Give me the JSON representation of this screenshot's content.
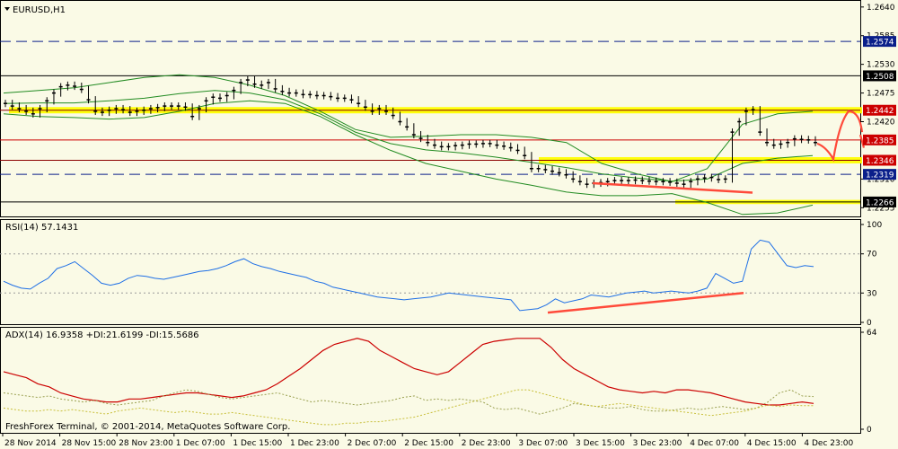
{
  "terminal": {
    "symbol_label": "EURUSD,H1",
    "copyright": "FreshForex Terminal, © 2001-2014, MetaQuotes Software Corp.",
    "colors": {
      "background": "#fafae6",
      "candle": "#000000",
      "bollinger": "#228b22",
      "resistance": "#8b0000",
      "support_zone": "#ffff00",
      "trend_annotation": "#ff4a3a",
      "rsi": "#1e6fe6",
      "adx": "#cc0000",
      "plus_di": "#9aa050",
      "minus_di": "#c8bf3a",
      "price_label_bg": "#0a1f8a",
      "price_label_red": "#cc0000"
    }
  },
  "chart_data": [
    {
      "type": "candlestick",
      "name": "price",
      "symbol": "EURUSD",
      "timeframe": "H1",
      "ylim": [
        1.224,
        1.265
      ],
      "y_ticks": [
        "1.2640",
        "1.2585",
        "1.2530",
        "1.2475",
        "1.2420",
        "1.2310",
        "1.2255"
      ],
      "x_labels": [
        "28 Nov 2014",
        "28 Nov 15:00",
        "28 Nov 23:00",
        "1 Dec 07:00",
        "1 Dec 15:00",
        "1 Dec 23:00",
        "2 Dec 07:00",
        "2 Dec 15:00",
        "2 Dec 23:00",
        "3 Dec 07:00",
        "3 Dec 15:00",
        "3 Dec 23:00",
        "4 Dec 07:00",
        "4 Dec 15:00",
        "4 Dec 23:00"
      ],
      "closes": [
        1.2455,
        1.245,
        1.2445,
        1.244,
        1.2435,
        1.2445,
        1.246,
        1.2475,
        1.2487,
        1.249,
        1.2488,
        1.2482,
        1.2462,
        1.244,
        1.2438,
        1.2442,
        1.2445,
        1.2443,
        1.2438,
        1.244,
        1.2442,
        1.2445,
        1.2447,
        1.245,
        1.245,
        1.245,
        1.2448,
        1.243,
        1.2445,
        1.246,
        1.2467,
        1.2465,
        1.247,
        1.248,
        1.2495,
        1.25,
        1.2492,
        1.249,
        1.2495,
        1.2483,
        1.2478,
        1.2475,
        1.2475,
        1.2472,
        1.2472,
        1.247,
        1.247,
        1.2468,
        1.2465,
        1.2465,
        1.2462,
        1.2455,
        1.2448,
        1.244,
        1.2445,
        1.244,
        1.2432,
        1.242,
        1.241,
        1.2395,
        1.2388,
        1.238,
        1.2375,
        1.2372,
        1.2372,
        1.2374,
        1.2375,
        1.2377,
        1.2377,
        1.2378,
        1.2378,
        1.2375,
        1.2373,
        1.237,
        1.2365,
        1.2355,
        1.233,
        1.233,
        1.2328,
        1.2325,
        1.2322,
        1.2318,
        1.231,
        1.2305,
        1.23,
        1.2302,
        1.2303,
        1.2305,
        1.2307,
        1.2307,
        1.2307,
        1.2308,
        1.2307,
        1.2306,
        1.2305,
        1.2305,
        1.2304,
        1.2302,
        1.23,
        1.2305,
        1.231,
        1.2312,
        1.2313,
        1.2309,
        1.231,
        1.24,
        1.242,
        1.244,
        1.2443,
        1.24,
        1.238,
        1.2375,
        1.2377,
        1.238,
        1.2387,
        1.2386,
        1.2385,
        1.238
      ],
      "bollinger": {
        "upper": [
          1.2475,
          1.248,
          1.2485,
          1.2495,
          1.2505,
          1.251,
          1.2505,
          1.249,
          1.247,
          1.244,
          1.2405,
          1.239,
          1.2392,
          1.2395,
          1.2395,
          1.239,
          1.238,
          1.234,
          1.232,
          1.2305,
          1.233,
          1.2415,
          1.2435,
          1.244
        ],
        "lower": [
          1.2435,
          1.243,
          1.2428,
          1.2425,
          1.2428,
          1.244,
          1.2455,
          1.246,
          1.2455,
          1.243,
          1.2395,
          1.2365,
          1.234,
          1.2325,
          1.231,
          1.2298,
          1.2285,
          1.2278,
          1.2278,
          1.2282,
          1.2265,
          1.2242,
          1.2245,
          1.226
        ],
        "middle": [
          1.2455,
          1.2456,
          1.2456,
          1.246,
          1.2465,
          1.2474,
          1.248,
          1.2475,
          1.2462,
          1.2435,
          1.24,
          1.2378,
          1.2366,
          1.236,
          1.2352,
          1.2342,
          1.2332,
          1.232,
          1.2312,
          1.2306,
          1.231,
          1.234,
          1.235,
          1.2355
        ]
      },
      "levels": [
        {
          "label": "1.2574",
          "value": 1.2574,
          "style": "dashed",
          "color": "#0a1f8a"
        },
        {
          "label": "1.2508",
          "value": 1.2508,
          "style": "solid",
          "color": "#000000"
        },
        {
          "label": "1.2442",
          "value": 1.2442,
          "style": "solid",
          "color": "#8b0000"
        },
        {
          "label": "1.2385",
          "value": 1.2385,
          "style": "solid",
          "color": "#cc0000"
        },
        {
          "label": "1.2346",
          "value": 1.2346,
          "style": "solid",
          "color": "#8b0000"
        },
        {
          "label": "1.2319",
          "value": 1.2319,
          "style": "dashed",
          "color": "#0a1f8a"
        },
        {
          "label": "1.2266",
          "value": 1.2266,
          "style": "solid",
          "color": "#000000"
        }
      ]
    },
    {
      "type": "line",
      "name": "rsi",
      "title": "RSI(14) 57.1431",
      "ylim": [
        0,
        100
      ],
      "y_ticks": [
        "100",
        "70",
        "30",
        "0"
      ],
      "levels": [
        70,
        30
      ],
      "values": [
        42,
        38,
        35,
        34,
        40,
        45,
        55,
        58,
        62,
        55,
        48,
        40,
        38,
        40,
        45,
        48,
        47,
        45,
        44,
        46,
        48,
        50,
        52,
        53,
        55,
        58,
        62,
        65,
        60,
        57,
        55,
        52,
        50,
        48,
        46,
        42,
        40,
        36,
        34,
        32,
        30,
        28,
        26,
        25,
        24,
        23,
        24,
        25,
        26,
        28,
        30,
        29,
        28,
        27,
        26,
        25,
        24,
        23,
        12,
        13,
        14,
        18,
        24,
        20,
        22,
        24,
        28,
        27,
        26,
        28,
        30,
        31,
        32,
        30,
        31,
        32,
        31,
        30,
        32,
        35,
        50,
        45,
        40,
        42,
        75,
        84,
        82,
        70,
        58,
        56,
        58,
        57
      ]
    },
    {
      "type": "line",
      "name": "adx",
      "title": "ADX(14) 16.9358 +DI:21.6199 -DI:15.5686",
      "ylim": [
        0,
        64
      ],
      "y_ticks": [
        "64",
        "0"
      ],
      "series": [
        {
          "name": "ADX(14)",
          "values": [
            38,
            36,
            34,
            30,
            28,
            24,
            22,
            20,
            19,
            18,
            18,
            20,
            20,
            21,
            22,
            23,
            24,
            24,
            23,
            22,
            21,
            22,
            24,
            26,
            30,
            35,
            40,
            46,
            52,
            56,
            58,
            60,
            58,
            52,
            48,
            44,
            40,
            38,
            36,
            38,
            44,
            50,
            56,
            58,
            59,
            60,
            60,
            60,
            54,
            46,
            40,
            36,
            32,
            28,
            26,
            25,
            24,
            25,
            24,
            26,
            26,
            25,
            24,
            22,
            20,
            18,
            17,
            16,
            16,
            17,
            18,
            17
          ]
        },
        {
          "name": "+DI",
          "values": [
            24,
            23,
            22,
            21,
            22,
            20,
            19,
            18,
            19,
            17,
            16,
            17,
            18,
            19,
            22,
            24,
            26,
            25,
            23,
            21,
            20,
            21,
            22,
            23,
            24,
            22,
            20,
            18,
            19,
            18,
            17,
            16,
            17,
            18,
            19,
            21,
            22,
            19,
            20,
            19,
            20,
            19,
            18,
            14,
            13,
            14,
            12,
            10,
            12,
            14,
            17,
            16,
            15,
            14,
            14,
            15,
            13,
            12,
            12,
            13,
            14,
            13,
            14,
            15,
            14,
            13,
            14,
            18,
            24,
            26,
            22,
            21.6
          ]
        },
        {
          "name": "-DI",
          "values": [
            14,
            13,
            12,
            12,
            13,
            12,
            13,
            12,
            11,
            10,
            12,
            13,
            14,
            13,
            12,
            11,
            12,
            11,
            10,
            10,
            11,
            10,
            9,
            8,
            7,
            6,
            5,
            4,
            3,
            3,
            4,
            4,
            5,
            5,
            6,
            7,
            8,
            10,
            12,
            14,
            16,
            18,
            20,
            22,
            24,
            26,
            26,
            24,
            22,
            20,
            18,
            16,
            15,
            16,
            17,
            16,
            15,
            14,
            13,
            12,
            11,
            10,
            9,
            10,
            11,
            12,
            14,
            16,
            15,
            16,
            15.6,
            15.6
          ]
        }
      ]
    }
  ]
}
